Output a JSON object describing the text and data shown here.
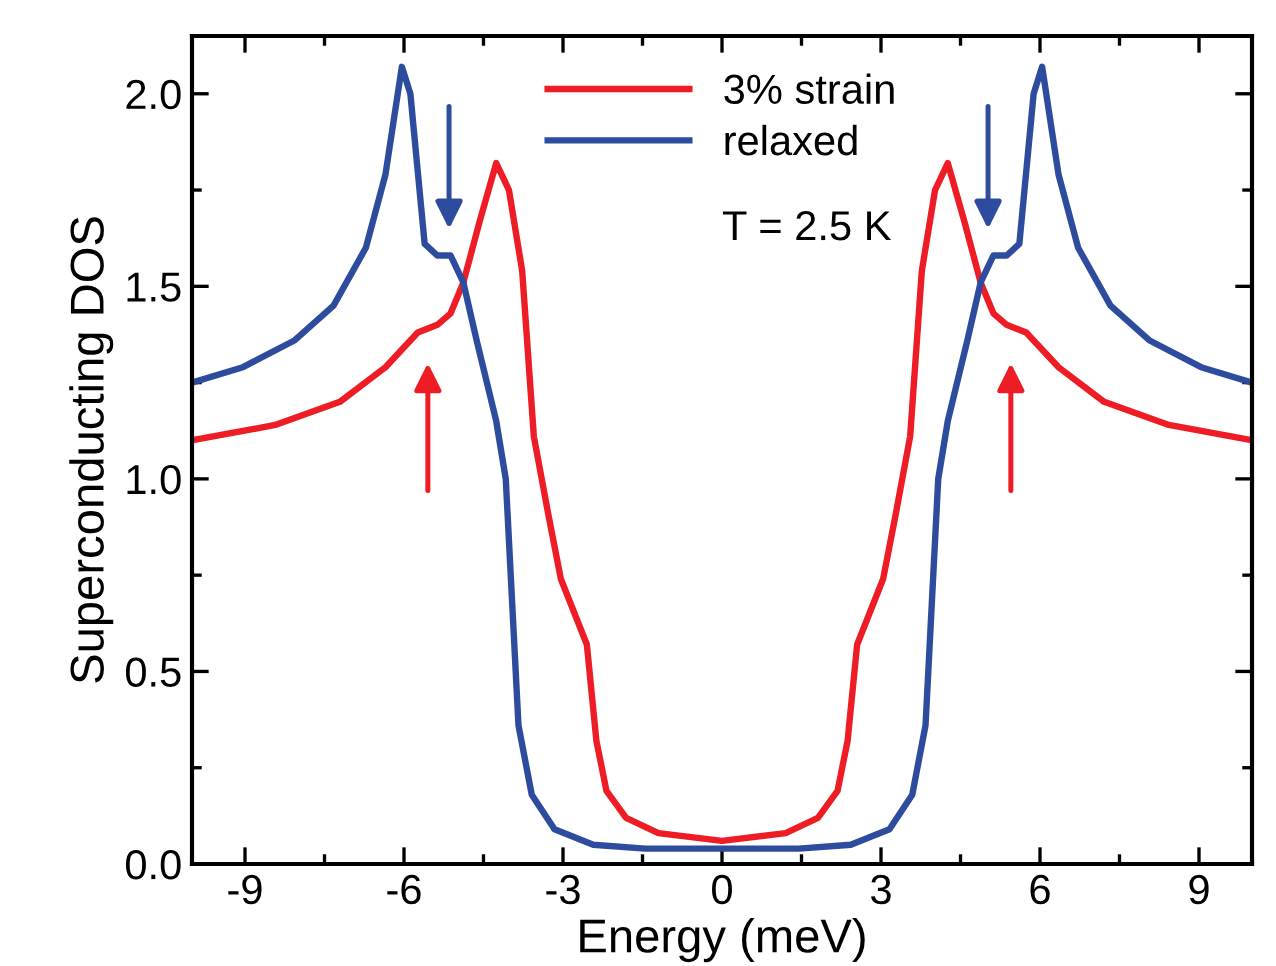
{
  "chart_data": {
    "type": "line",
    "xlabel": "Energy (meV)",
    "ylabel": "Superconducting DOS",
    "xlim": [
      -10,
      10
    ],
    "xticks": [
      -9,
      -6,
      -3,
      0,
      3,
      6,
      9
    ],
    "ylim": [
      0,
      2.15
    ],
    "yticks": [
      {
        "value": 0,
        "label": "0.0"
      },
      {
        "value": 0.5,
        "label": "0.5"
      },
      {
        "value": 1,
        "label": "1.0"
      },
      {
        "value": 1.5,
        "label": "1.5"
      },
      {
        "value": 2,
        "label": "2.0"
      }
    ],
    "grid": false,
    "legend": "top",
    "marker": "none",
    "line_style": "solid",
    "series": [
      {
        "name": "3% strain",
        "color": "#ee1c25",
        "x": [
          -10,
          -8.43,
          -7.21,
          -6.35,
          -5.74,
          -5.37,
          -5.12,
          -4.88,
          -4.57,
          -4.26,
          -4.02,
          -3.77,
          -3.55,
          -3.28,
          -3.04,
          -2.55,
          -2.37,
          -2.18,
          -1.81,
          -1.2,
          0,
          1.2,
          1.81,
          2.18,
          2.37,
          2.55,
          3.04,
          3.28,
          3.55,
          3.77,
          4.02,
          4.26,
          4.57,
          4.88,
          5.12,
          5.37,
          5.74,
          6.35,
          7.21,
          8.43,
          10
        ],
        "values": [
          1.1,
          1.14,
          1.2,
          1.29,
          1.38,
          1.4,
          1.43,
          1.51,
          1.67,
          1.82,
          1.75,
          1.54,
          1.11,
          0.91,
          0.74,
          0.57,
          0.32,
          0.19,
          0.12,
          0.08,
          0.06,
          0.08,
          0.12,
          0.19,
          0.32,
          0.57,
          0.74,
          0.91,
          1.11,
          1.54,
          1.75,
          1.82,
          1.67,
          1.51,
          1.43,
          1.4,
          1.38,
          1.29,
          1.2,
          1.14,
          1.1
        ]
      },
      {
        "name": "relaxed",
        "color": "#2e4c9e",
        "x": [
          -10,
          -9.04,
          -8.06,
          -7.33,
          -6.72,
          -6.35,
          -6.04,
          -5.88,
          -5.61,
          -5.37,
          -5.12,
          -4.88,
          -4.63,
          -4.26,
          -4.08,
          -3.96,
          -3.84,
          -3.59,
          -3.16,
          -2.43,
          -1.45,
          0,
          1.45,
          2.43,
          3.16,
          3.59,
          3.84,
          3.96,
          4.08,
          4.26,
          4.63,
          4.88,
          5.12,
          5.37,
          5.61,
          5.88,
          6.04,
          6.35,
          6.72,
          7.33,
          8.06,
          9.04,
          10
        ],
        "values": [
          1.25,
          1.29,
          1.36,
          1.45,
          1.6,
          1.79,
          2.07,
          2.0,
          1.61,
          1.58,
          1.58,
          1.51,
          1.36,
          1.15,
          1.0,
          0.68,
          0.36,
          0.18,
          0.09,
          0.05,
          0.04,
          0.04,
          0.04,
          0.05,
          0.09,
          0.18,
          0.36,
          0.68,
          1.0,
          1.15,
          1.36,
          1.51,
          1.58,
          1.58,
          1.61,
          2.0,
          2.07,
          1.79,
          1.6,
          1.45,
          1.36,
          1.29,
          1.25
        ]
      }
    ],
    "annotations": [
      "T = 2.5 K"
    ]
  }
}
